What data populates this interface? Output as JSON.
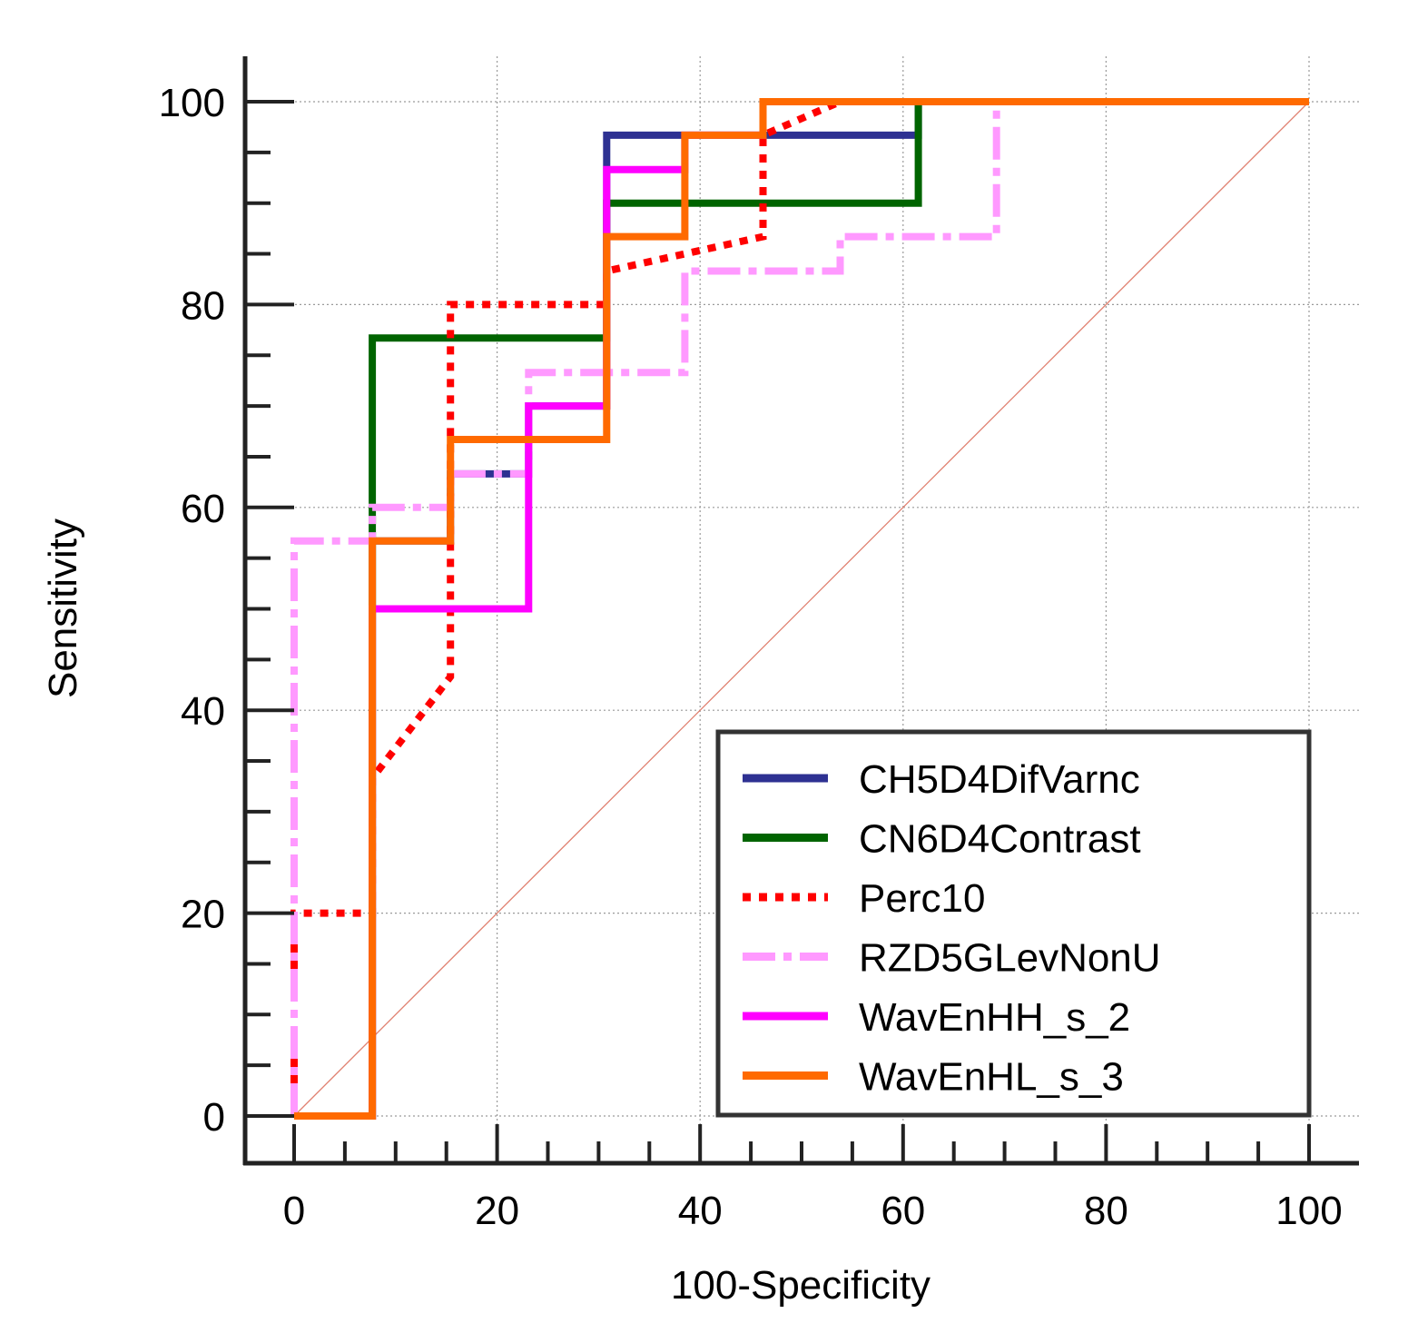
{
  "chart_data": {
    "type": "line",
    "title": "",
    "xlabel": "100-Specificity",
    "ylabel": "Sensitivity",
    "xlim": [
      0,
      100
    ],
    "ylim": [
      0,
      100
    ],
    "xticks": [
      0,
      20,
      40,
      60,
      80,
      100
    ],
    "yticks": [
      0,
      20,
      40,
      60,
      80,
      100
    ],
    "grid": true,
    "legend_position": "bottom-right",
    "reference_line": {
      "name": "diagonal",
      "color": "#e08070",
      "points": [
        [
          0,
          0
        ],
        [
          100,
          100
        ]
      ]
    },
    "series": [
      {
        "name": "CH5D4DifVarnc",
        "color": "#2e3192",
        "style": "solid",
        "points": [
          [
            0,
            0
          ],
          [
            7.7,
            0
          ],
          [
            7.7,
            56.7
          ],
          [
            15.4,
            56.7
          ],
          [
            15.4,
            63.3
          ],
          [
            23.1,
            63.3
          ],
          [
            23.1,
            70
          ],
          [
            30.8,
            70
          ],
          [
            30.8,
            96.7
          ],
          [
            61.5,
            96.7
          ],
          [
            61.5,
            100
          ],
          [
            100,
            100
          ]
        ]
      },
      {
        "name": "CN6D4Contrast",
        "color": "#006400",
        "style": "solid",
        "points": [
          [
            0,
            0
          ],
          [
            7.7,
            0
          ],
          [
            7.7,
            76.7
          ],
          [
            30.8,
            76.7
          ],
          [
            30.8,
            90
          ],
          [
            61.5,
            90
          ],
          [
            61.5,
            100
          ],
          [
            100,
            100
          ]
        ]
      },
      {
        "name": "Perc10",
        "color": "#ff0000",
        "style": "dotted",
        "points": [
          [
            0,
            0
          ],
          [
            0,
            20
          ],
          [
            7.7,
            20
          ],
          [
            7.7,
            33.3
          ],
          [
            15.4,
            43.3
          ],
          [
            15.4,
            80
          ],
          [
            30.8,
            80
          ],
          [
            30.8,
            83.3
          ],
          [
            46.2,
            86.7
          ],
          [
            46.2,
            96.7
          ],
          [
            53.8,
            100
          ],
          [
            100,
            100
          ]
        ]
      },
      {
        "name": "RZD5GLevNonU",
        "color": "#ff99ff",
        "style": "dashdot",
        "points": [
          [
            0,
            0
          ],
          [
            0,
            56.7
          ],
          [
            7.7,
            56.7
          ],
          [
            7.7,
            60
          ],
          [
            15.4,
            60
          ],
          [
            15.4,
            63.3
          ],
          [
            23.1,
            63.3
          ],
          [
            23.1,
            73.3
          ],
          [
            38.5,
            73.3
          ],
          [
            38.5,
            83.3
          ],
          [
            53.8,
            83.3
          ],
          [
            53.8,
            86.7
          ],
          [
            69.2,
            86.7
          ],
          [
            69.2,
            100
          ],
          [
            100,
            100
          ]
        ]
      },
      {
        "name": "WavEnHH_s_2",
        "color": "#ff00ff",
        "style": "solid",
        "points": [
          [
            0,
            0
          ],
          [
            7.7,
            0
          ],
          [
            7.7,
            50
          ],
          [
            23.1,
            50
          ],
          [
            23.1,
            70
          ],
          [
            30.8,
            70
          ],
          [
            30.8,
            93.3
          ],
          [
            38.5,
            93.3
          ],
          [
            38.5,
            96.7
          ],
          [
            46.2,
            96.7
          ],
          [
            46.2,
            100
          ],
          [
            100,
            100
          ]
        ]
      },
      {
        "name": "WavEnHL_s_3",
        "color": "#ff6a00",
        "style": "solid",
        "points": [
          [
            0,
            0
          ],
          [
            7.7,
            0
          ],
          [
            7.7,
            56.7
          ],
          [
            15.4,
            56.7
          ],
          [
            15.4,
            66.7
          ],
          [
            30.8,
            66.7
          ],
          [
            30.8,
            86.7
          ],
          [
            38.5,
            86.7
          ],
          [
            38.5,
            96.7
          ],
          [
            46.2,
            96.7
          ],
          [
            46.2,
            100
          ],
          [
            100,
            100
          ]
        ]
      }
    ]
  }
}
